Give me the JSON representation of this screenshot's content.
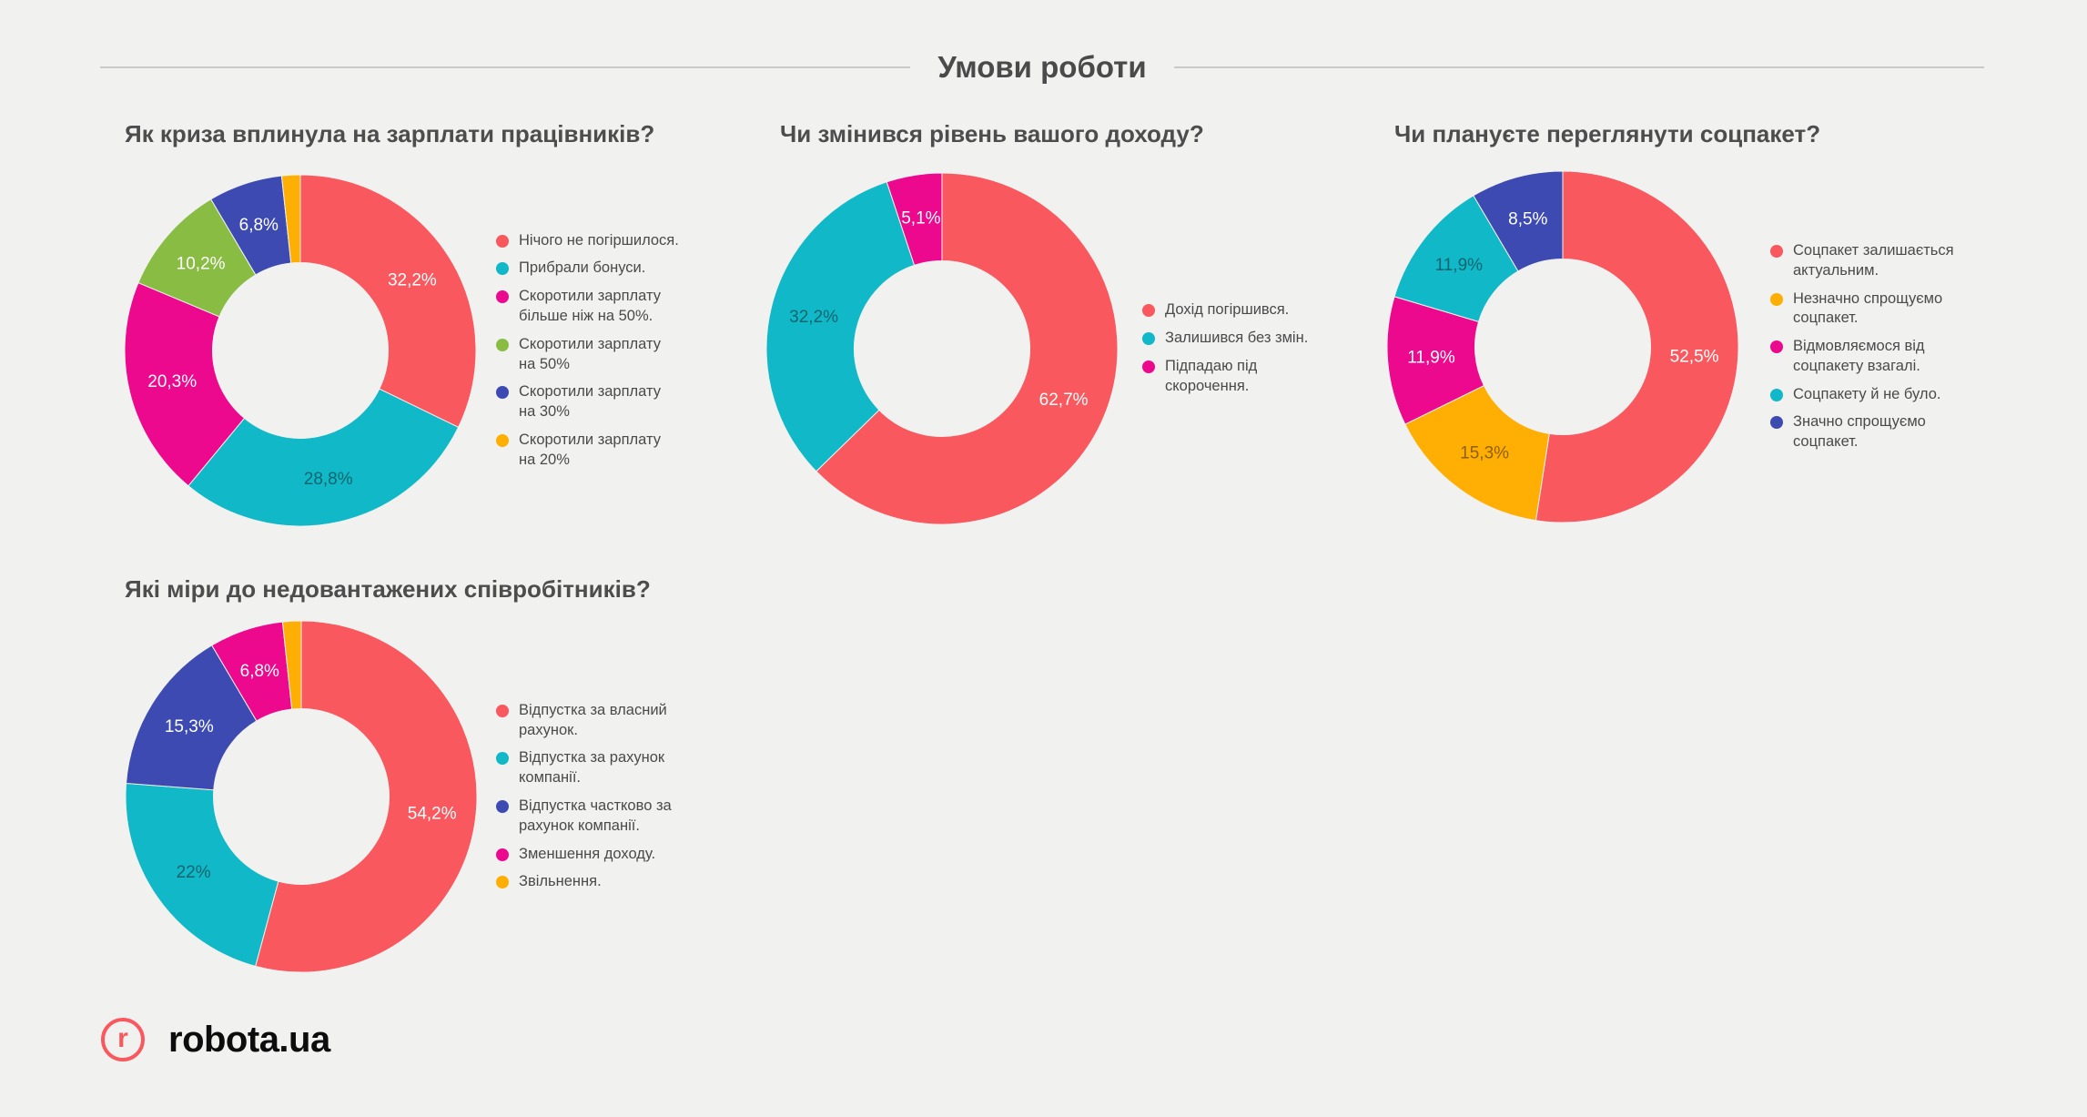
{
  "page": {
    "title": "Умови роботи",
    "background": "#F1F1EF"
  },
  "footer": {
    "logo_letter": "r",
    "logo_text": "robota.ua",
    "logo_color": "#F8585E"
  },
  "palette": {
    "red": "#F8585E",
    "teal": "#10B8C8",
    "magenta": "#EC098E",
    "green": "#89BC43",
    "blue": "#3C4AB2",
    "orange": "#FFAE03",
    "title_gray": "#4D4D4D",
    "legend_gray": "#4A4A4A"
  },
  "chart_data": [
    {
      "type": "pie",
      "hole": 0.5,
      "legend_position": "right",
      "title": "Як криза вплинула на зарплати працівників?",
      "slices": [
        {
          "label": "Нічого не погіршилося.",
          "value": 32.2,
          "display": "32,2%",
          "color": "#F8585E",
          "text": "light"
        },
        {
          "label": "Прибрали бонуси.",
          "value": 28.8,
          "display": "28,8%",
          "color": "#10B8C8",
          "text": "dark"
        },
        {
          "label": "Скоротили зарплату більше ніж на 50%.",
          "value": 20.3,
          "display": "20,3%",
          "color": "#EC098E",
          "text": "light"
        },
        {
          "label": "Скоротили зарплату на 50%",
          "value": 10.2,
          "display": "10,2%",
          "color": "#89BC43",
          "text": "light"
        },
        {
          "label": "Скоротили зарплату на 30%",
          "value": 6.8,
          "display": "6,8%",
          "color": "#3C4AB2",
          "text": "light"
        },
        {
          "label": "Скоротили зарплату на 20%",
          "value": 1.7,
          "display": "",
          "color": "#FFAE03",
          "text": "none"
        }
      ]
    },
    {
      "type": "pie",
      "hole": 0.5,
      "legend_position": "right",
      "title": "Чи змінився рівень вашого доходу?",
      "slices": [
        {
          "label": "Дохід погіршився.",
          "value": 62.7,
          "display": "62,7%",
          "color": "#F8585E",
          "text": "light"
        },
        {
          "label": "Залишився без змін.",
          "value": 32.2,
          "display": "32,2%",
          "color": "#10B8C8",
          "text": "dark"
        },
        {
          "label": "Підпадаю під скорочення.",
          "value": 5.1,
          "display": "5,1%",
          "color": "#EC098E",
          "text": "light"
        }
      ]
    },
    {
      "type": "pie",
      "hole": 0.5,
      "legend_position": "right",
      "title": "Чи плануєте переглянути соцпакет?",
      "slices": [
        {
          "label": "Соцпакет залишається актуальним.",
          "value": 52.5,
          "display": "52,5%",
          "color": "#F8585E",
          "text": "light"
        },
        {
          "label": "Незначно спрощуємо соцпакет.",
          "value": 15.3,
          "display": "15,3%",
          "color": "#FFAE03",
          "text": "dark"
        },
        {
          "label": "Відмовляємося від соцпакету взагалі.",
          "value": 11.9,
          "display": "11,9%",
          "color": "#EC098E",
          "text": "light"
        },
        {
          "label": "Соцпакету й не було.",
          "value": 11.9,
          "display": "11,9%",
          "color": "#10B8C8",
          "text": "dark"
        },
        {
          "label": "Значно спрощуємо соцпакет.",
          "value": 8.5,
          "display": "8,5%",
          "color": "#3C4AB2",
          "text": "light"
        }
      ]
    },
    {
      "type": "pie",
      "hole": 0.5,
      "legend_position": "right",
      "title": "Які міри до недовантажених співробітників?",
      "slices": [
        {
          "label": "Відпустка за власний рахунок.",
          "value": 54.2,
          "display": "54,2%",
          "color": "#F8585E",
          "text": "light"
        },
        {
          "label": "Відпустка за рахунок компанії.",
          "value": 22,
          "display": "22%",
          "color": "#10B8C8",
          "text": "dark"
        },
        {
          "label": "Відпустка частково за рахунок компанії.",
          "value": 15.3,
          "display": "15,3%",
          "color": "#3C4AB2",
          "text": "light"
        },
        {
          "label": "Зменшення доходу.",
          "value": 6.8,
          "display": "6,8%",
          "color": "#EC098E",
          "text": "light"
        },
        {
          "label": "Звільнення.",
          "value": 1.7,
          "display": "",
          "color": "#FFAE03",
          "text": "none"
        }
      ]
    }
  ]
}
